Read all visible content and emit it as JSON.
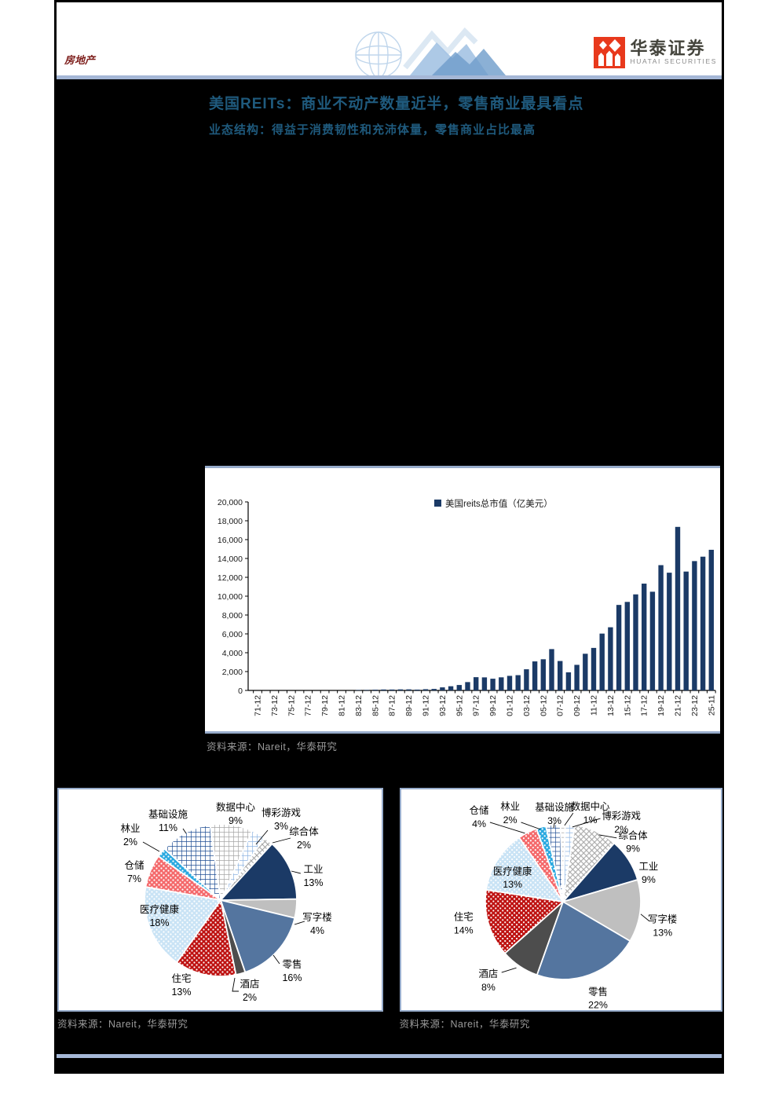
{
  "header": {
    "category_label": "房地产",
    "brand_cn": "华泰证券",
    "brand_en": "HUATAI SECURITIES"
  },
  "title": "美国REITs：商业不动产数量近半，零售商业最具看点",
  "subtitle": "业态结构：得益于消费韧性和充沛体量，零售商业占比最高",
  "sources": {
    "bar": "资料来源：Nareit，华泰研究",
    "pie_left": "资料来源：Nareit，华泰研究",
    "pie_right": "资料来源：Nareit，华泰研究"
  },
  "colors": {
    "background": "#000000",
    "accent_steel": "#A5B7D6",
    "panel_border": "#97ACCB",
    "bar": "#1B3A66",
    "title_text": "#1F5A7D",
    "source_text": "#9A9A9A",
    "brand_red": "#E8391C",
    "category_red": "#7E1F1C"
  },
  "chart_data": [
    {
      "type": "bar",
      "legend": "美国reits总市值（亿美元）",
      "unit": "亿美元",
      "first_year": 1971,
      "x_tick_labels": [
        "71-12",
        "73-12",
        "75-12",
        "77-12",
        "79-12",
        "81-12",
        "83-12",
        "85-12",
        "87-12",
        "89-12",
        "91-12",
        "93-12",
        "95-12",
        "97-12",
        "99-12",
        "01-12",
        "03-12",
        "05-12",
        "07-12",
        "09-12",
        "11-12",
        "13-12",
        "15-12",
        "17-12",
        "19-12",
        "21-12",
        "23-12",
        "25-11"
      ],
      "values": [
        15,
        18,
        14,
        7,
        9,
        11,
        11,
        10,
        12,
        23,
        24,
        33,
        44,
        51,
        77,
        99,
        96,
        112,
        113,
        87,
        129,
        159,
        323,
        443,
        575,
        884,
        1405,
        1384,
        1242,
        1389,
        1546,
        1619,
        2243,
        3078,
        3306,
        4383,
        3120,
        1918,
        2713,
        3890,
        4510,
        6030,
        6700,
        9070,
        9390,
        10190,
        11330,
        10470,
        13290,
        12490,
        17350,
        12610,
        13720,
        14190,
        14920
      ],
      "ylim": [
        0,
        20000
      ],
      "y_tick_step": 2000,
      "bar_color": "#1B3A66",
      "grid": false,
      "legend_position": "top-center"
    },
    {
      "type": "pie",
      "position": "left",
      "start_angle": -8,
      "slices": [
        {
          "label": "数据中心",
          "value": 9,
          "texture": "grid",
          "color": "#A6A6A6"
        },
        {
          "label": "博彩游戏",
          "value": 3,
          "texture": "grid",
          "color": "#8DB4E2"
        },
        {
          "label": "综合体",
          "value": 2,
          "texture": "diag",
          "color": "#A6A6A6"
        },
        {
          "label": "工业",
          "value": 13,
          "texture": "solid",
          "color": "#1B3A66"
        },
        {
          "label": "写字楼",
          "value": 4,
          "texture": "solid",
          "color": "#BFBFBF"
        },
        {
          "label": "零售",
          "value": 16,
          "texture": "solid",
          "color": "#54759F"
        },
        {
          "label": "酒店",
          "value": 2,
          "texture": "solid",
          "color": "#4D4D4D"
        },
        {
          "label": "住宅",
          "value": 13,
          "texture": "dots",
          "color": "#BE1211"
        },
        {
          "label": "医疗健康",
          "value": 18,
          "texture": "dots",
          "color": "#C9E3F5"
        },
        {
          "label": "仓储",
          "value": 7,
          "texture": "dots",
          "color": "#F4696B"
        },
        {
          "label": "林业",
          "value": 2,
          "texture": "dots",
          "color": "#2AA9E0"
        },
        {
          "label": "基础设施",
          "value": 11,
          "texture": "grid",
          "color": "#1F4E94"
        }
      ]
    },
    {
      "type": "pie",
      "position": "right",
      "start_angle": -2,
      "slices": [
        {
          "label": "数据中心",
          "value": 1,
          "texture": "grid",
          "color": "#A6A6A6"
        },
        {
          "label": "博彩游戏",
          "value": 2,
          "texture": "grid",
          "color": "#8DB4E2"
        },
        {
          "label": "综合体",
          "value": 9,
          "texture": "diag",
          "color": "#A6A6A6"
        },
        {
          "label": "工业",
          "value": 9,
          "texture": "solid",
          "color": "#1B3A66"
        },
        {
          "label": "写字楼",
          "value": 13,
          "texture": "solid",
          "color": "#BFBFBF"
        },
        {
          "label": "零售",
          "value": 22,
          "texture": "solid",
          "color": "#54759F"
        },
        {
          "label": "酒店",
          "value": 8,
          "texture": "solid",
          "color": "#4D4D4D"
        },
        {
          "label": "住宅",
          "value": 14,
          "texture": "dots",
          "color": "#BE1211"
        },
        {
          "label": "医疗健康",
          "value": 13,
          "texture": "dots",
          "color": "#C9E3F5"
        },
        {
          "label": "仓储",
          "value": 4,
          "texture": "dots",
          "color": "#F4696B"
        },
        {
          "label": "林业",
          "value": 2,
          "texture": "dots",
          "color": "#2AA9E0"
        },
        {
          "label": "基础设施",
          "value": 3,
          "texture": "grid",
          "color": "#1F4E94"
        }
      ]
    }
  ]
}
